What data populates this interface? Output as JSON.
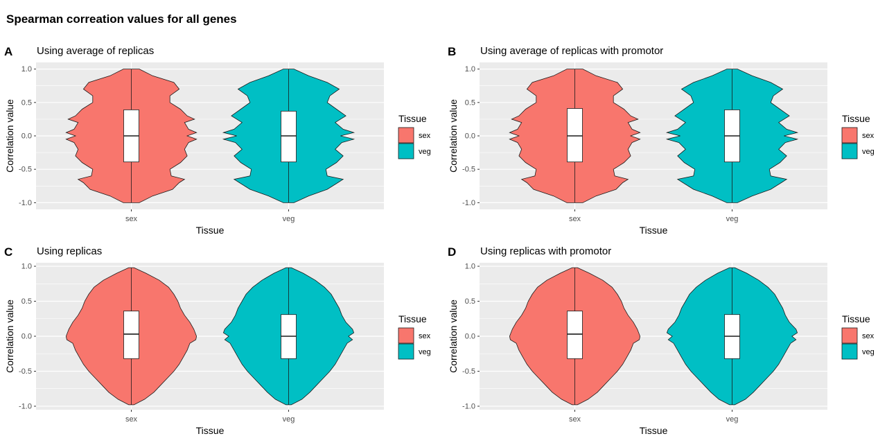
{
  "figure": {
    "title": "Spearman correation values for all genes"
  },
  "colors": {
    "sex": "#F8766D",
    "veg": "#00BFC4",
    "panel_bg": "#EBEBEB",
    "grid": "#FFFFFF"
  },
  "chart_data": [
    {
      "tag": "A",
      "subtitle": "Using average of replicas",
      "type": "violin",
      "xlabel": "Tissue",
      "ylabel": "Correlation value",
      "ylim": [
        -1.1,
        1.1
      ],
      "yticks": [
        "1.0",
        "0.5",
        "0.0",
        "-0.5",
        "-1.0"
      ],
      "legend": {
        "title": "Tissue",
        "position": "right",
        "items": [
          "sex",
          "veg"
        ]
      },
      "categories": [
        "sex",
        "veg"
      ],
      "series": [
        {
          "category": "sex",
          "median": 0.0,
          "q1": -0.39,
          "q3": 0.39,
          "profile": [
            [
              1.0,
              0.12
            ],
            [
              0.9,
              0.32
            ],
            [
              0.8,
              0.64
            ],
            [
              0.7,
              0.72
            ],
            [
              0.6,
              0.58
            ],
            [
              0.5,
              0.58
            ],
            [
              0.4,
              0.74
            ],
            [
              0.3,
              0.84
            ],
            [
              0.25,
              0.95
            ],
            [
              0.2,
              0.8
            ],
            [
              0.1,
              0.86
            ],
            [
              0.05,
              0.98
            ],
            [
              0.0,
              0.84
            ],
            [
              -0.05,
              0.98
            ],
            [
              -0.1,
              0.86
            ],
            [
              -0.2,
              0.8
            ],
            [
              -0.3,
              0.84
            ],
            [
              -0.4,
              0.74
            ],
            [
              -0.5,
              0.58
            ],
            [
              -0.6,
              0.6
            ],
            [
              -0.65,
              0.8
            ],
            [
              -0.7,
              0.72
            ],
            [
              -0.8,
              0.62
            ],
            [
              -0.9,
              0.32
            ],
            [
              -1.0,
              0.12
            ]
          ]
        },
        {
          "category": "veg",
          "median": 0.0,
          "q1": -0.39,
          "q3": 0.37,
          "profile": [
            [
              1.0,
              0.08
            ],
            [
              0.9,
              0.3
            ],
            [
              0.8,
              0.58
            ],
            [
              0.7,
              0.76
            ],
            [
              0.6,
              0.62
            ],
            [
              0.5,
              0.58
            ],
            [
              0.4,
              0.72
            ],
            [
              0.3,
              0.86
            ],
            [
              0.2,
              0.7
            ],
            [
              0.1,
              0.82
            ],
            [
              0.05,
              0.98
            ],
            [
              0.0,
              0.78
            ],
            [
              -0.05,
              0.98
            ],
            [
              -0.1,
              0.8
            ],
            [
              -0.2,
              0.7
            ],
            [
              -0.3,
              0.82
            ],
            [
              -0.4,
              0.72
            ],
            [
              -0.5,
              0.56
            ],
            [
              -0.6,
              0.58
            ],
            [
              -0.65,
              0.82
            ],
            [
              -0.7,
              0.74
            ],
            [
              -0.8,
              0.58
            ],
            [
              -0.9,
              0.3
            ],
            [
              -1.0,
              0.08
            ]
          ]
        }
      ]
    },
    {
      "tag": "B",
      "subtitle": "Using average of replicas with promotor",
      "type": "violin",
      "xlabel": "Tissue",
      "ylabel": "Correlation value",
      "ylim": [
        -1.1,
        1.1
      ],
      "yticks": [
        "1.0",
        "0.5",
        "0.0",
        "-0.5",
        "-1.0"
      ],
      "legend": {
        "title": "Tissue",
        "position": "right",
        "items": [
          "sex",
          "veg"
        ]
      },
      "categories": [
        "sex",
        "veg"
      ],
      "series": [
        {
          "category": "sex",
          "median": 0.0,
          "q1": -0.39,
          "q3": 0.41,
          "profile": [
            [
              1.0,
              0.12
            ],
            [
              0.9,
              0.32
            ],
            [
              0.8,
              0.64
            ],
            [
              0.7,
              0.72
            ],
            [
              0.6,
              0.58
            ],
            [
              0.5,
              0.58
            ],
            [
              0.4,
              0.74
            ],
            [
              0.3,
              0.84
            ],
            [
              0.25,
              0.95
            ],
            [
              0.2,
              0.8
            ],
            [
              0.1,
              0.86
            ],
            [
              0.05,
              0.98
            ],
            [
              0.0,
              0.84
            ],
            [
              -0.05,
              0.98
            ],
            [
              -0.1,
              0.86
            ],
            [
              -0.2,
              0.8
            ],
            [
              -0.3,
              0.84
            ],
            [
              -0.4,
              0.74
            ],
            [
              -0.5,
              0.58
            ],
            [
              -0.6,
              0.6
            ],
            [
              -0.65,
              0.8
            ],
            [
              -0.7,
              0.72
            ],
            [
              -0.8,
              0.62
            ],
            [
              -0.9,
              0.32
            ],
            [
              -1.0,
              0.12
            ]
          ]
        },
        {
          "category": "veg",
          "median": 0.0,
          "q1": -0.39,
          "q3": 0.39,
          "profile": [
            [
              1.0,
              0.08
            ],
            [
              0.9,
              0.3
            ],
            [
              0.8,
              0.58
            ],
            [
              0.7,
              0.76
            ],
            [
              0.6,
              0.62
            ],
            [
              0.5,
              0.58
            ],
            [
              0.4,
              0.72
            ],
            [
              0.3,
              0.86
            ],
            [
              0.2,
              0.7
            ],
            [
              0.1,
              0.82
            ],
            [
              0.05,
              0.98
            ],
            [
              0.0,
              0.78
            ],
            [
              -0.05,
              0.98
            ],
            [
              -0.1,
              0.8
            ],
            [
              -0.2,
              0.7
            ],
            [
              -0.3,
              0.82
            ],
            [
              -0.4,
              0.72
            ],
            [
              -0.5,
              0.56
            ],
            [
              -0.6,
              0.58
            ],
            [
              -0.65,
              0.82
            ],
            [
              -0.7,
              0.74
            ],
            [
              -0.8,
              0.58
            ],
            [
              -0.9,
              0.3
            ],
            [
              -1.0,
              0.08
            ]
          ]
        }
      ]
    },
    {
      "tag": "C",
      "subtitle": "Using replicas",
      "type": "violin",
      "xlabel": "Tissue",
      "ylabel": "Correlation value",
      "ylim": [
        -1.05,
        1.05
      ],
      "yticks": [
        "1.0",
        "0.5",
        "0.0",
        "-0.5",
        "-1.0"
      ],
      "legend": {
        "title": "Tissue",
        "position": "right",
        "items": [
          "sex",
          "veg"
        ]
      },
      "categories": [
        "sex",
        "veg"
      ],
      "series": [
        {
          "category": "sex",
          "median": 0.03,
          "q1": -0.32,
          "q3": 0.36,
          "profile": [
            [
              0.98,
              0.04
            ],
            [
              0.9,
              0.22
            ],
            [
              0.8,
              0.42
            ],
            [
              0.7,
              0.56
            ],
            [
              0.6,
              0.64
            ],
            [
              0.5,
              0.7
            ],
            [
              0.4,
              0.74
            ],
            [
              0.3,
              0.8
            ],
            [
              0.2,
              0.88
            ],
            [
              0.1,
              0.94
            ],
            [
              0.0,
              0.98
            ],
            [
              -0.05,
              0.97
            ],
            [
              -0.1,
              0.88
            ],
            [
              -0.2,
              0.84
            ],
            [
              -0.3,
              0.78
            ],
            [
              -0.4,
              0.72
            ],
            [
              -0.5,
              0.64
            ],
            [
              -0.6,
              0.54
            ],
            [
              -0.7,
              0.44
            ],
            [
              -0.8,
              0.34
            ],
            [
              -0.9,
              0.2
            ],
            [
              -0.98,
              0.04
            ]
          ]
        },
        {
          "category": "veg",
          "median": 0.0,
          "q1": -0.32,
          "q3": 0.31,
          "profile": [
            [
              0.98,
              0.04
            ],
            [
              0.9,
              0.22
            ],
            [
              0.8,
              0.4
            ],
            [
              0.7,
              0.54
            ],
            [
              0.6,
              0.64
            ],
            [
              0.5,
              0.7
            ],
            [
              0.4,
              0.76
            ],
            [
              0.3,
              0.8
            ],
            [
              0.2,
              0.86
            ],
            [
              0.1,
              0.96
            ],
            [
              0.05,
              0.98
            ],
            [
              0.0,
              0.9
            ],
            [
              -0.05,
              0.96
            ],
            [
              -0.1,
              0.88
            ],
            [
              -0.2,
              0.82
            ],
            [
              -0.3,
              0.76
            ],
            [
              -0.4,
              0.7
            ],
            [
              -0.5,
              0.62
            ],
            [
              -0.6,
              0.52
            ],
            [
              -0.7,
              0.42
            ],
            [
              -0.8,
              0.32
            ],
            [
              -0.9,
              0.2
            ],
            [
              -0.98,
              0.04
            ]
          ]
        }
      ]
    },
    {
      "tag": "D",
      "subtitle": "Using replicas with promotor",
      "type": "violin",
      "xlabel": "Tissue",
      "ylabel": "Correlation value",
      "ylim": [
        -1.05,
        1.05
      ],
      "yticks": [
        "1.0",
        "0.5",
        "0.0",
        "-0.5",
        "-1.0"
      ],
      "legend": {
        "title": "Tissue",
        "position": "right",
        "items": [
          "sex",
          "veg"
        ]
      },
      "categories": [
        "sex",
        "veg"
      ],
      "series": [
        {
          "category": "sex",
          "median": 0.03,
          "q1": -0.32,
          "q3": 0.36,
          "profile": [
            [
              0.98,
              0.04
            ],
            [
              0.9,
              0.22
            ],
            [
              0.8,
              0.42
            ],
            [
              0.7,
              0.56
            ],
            [
              0.6,
              0.64
            ],
            [
              0.5,
              0.7
            ],
            [
              0.4,
              0.74
            ],
            [
              0.3,
              0.8
            ],
            [
              0.2,
              0.88
            ],
            [
              0.1,
              0.94
            ],
            [
              0.0,
              0.98
            ],
            [
              -0.05,
              0.97
            ],
            [
              -0.1,
              0.88
            ],
            [
              -0.2,
              0.84
            ],
            [
              -0.3,
              0.78
            ],
            [
              -0.4,
              0.72
            ],
            [
              -0.5,
              0.64
            ],
            [
              -0.6,
              0.54
            ],
            [
              -0.7,
              0.44
            ],
            [
              -0.8,
              0.34
            ],
            [
              -0.9,
              0.2
            ],
            [
              -0.98,
              0.04
            ]
          ]
        },
        {
          "category": "veg",
          "median": 0.0,
          "q1": -0.32,
          "q3": 0.31,
          "profile": [
            [
              0.98,
              0.04
            ],
            [
              0.9,
              0.22
            ],
            [
              0.8,
              0.4
            ],
            [
              0.7,
              0.54
            ],
            [
              0.6,
              0.64
            ],
            [
              0.5,
              0.7
            ],
            [
              0.4,
              0.76
            ],
            [
              0.3,
              0.8
            ],
            [
              0.2,
              0.86
            ],
            [
              0.1,
              0.96
            ],
            [
              0.05,
              0.98
            ],
            [
              0.0,
              0.9
            ],
            [
              -0.05,
              0.96
            ],
            [
              -0.1,
              0.88
            ],
            [
              -0.2,
              0.82
            ],
            [
              -0.3,
              0.76
            ],
            [
              -0.4,
              0.7
            ],
            [
              -0.5,
              0.62
            ],
            [
              -0.6,
              0.52
            ],
            [
              -0.7,
              0.42
            ],
            [
              -0.8,
              0.32
            ],
            [
              -0.9,
              0.2
            ],
            [
              -0.98,
              0.04
            ]
          ]
        }
      ]
    }
  ]
}
